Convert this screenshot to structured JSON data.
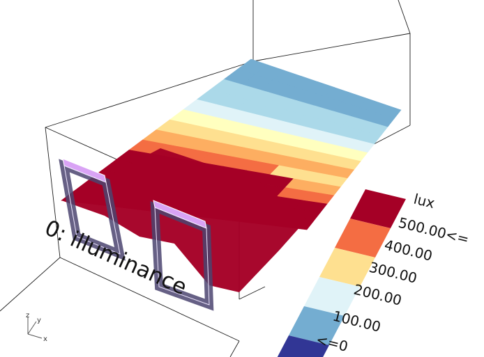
{
  "viewport": {
    "title": "0: illuminance",
    "axes": {
      "x_label": "x",
      "y_label": "y",
      "z_label": "z"
    }
  },
  "legend": {
    "unit": "lux",
    "labels": [
      "500.00<=",
      "400.00",
      "300.00",
      "200.00",
      "100.00",
      "<=0"
    ],
    "colors": [
      "#a50026",
      "#f46d43",
      "#fee090",
      "#e0f3f8",
      "#74add1",
      "#313695"
    ]
  },
  "grid_colors": {
    "lowest": "#313695",
    "low": "#74add1",
    "low_mid": "#abd9e9",
    "mid": "#e0f3f8",
    "mid_high": "#ffffbf",
    "high": "#fee090",
    "higher": "#fdae61",
    "very_high": "#f46d43",
    "max": "#a50026",
    "window_fill": "#d9a3f5",
    "window_side": "#4b4470"
  }
}
